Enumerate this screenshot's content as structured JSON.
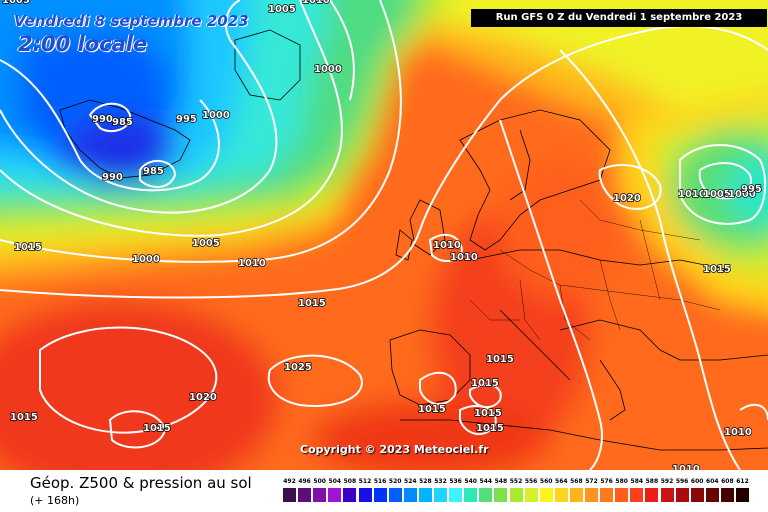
{
  "header": {
    "date_title": "Vendredi 8 septembre 2023",
    "time_title": "2:00 locale",
    "run_banner": "Run GFS 0 Z du Vendredi 1 septembre 2023"
  },
  "map": {
    "copyright": "Copyright © 2023 Meteociel.fr",
    "isobar_labels": [
      "1005",
      "1010",
      "1000",
      "990",
      "985",
      "995",
      "1000",
      "990",
      "985",
      "1015",
      "1005",
      "1000",
      "1010",
      "1015",
      "1010",
      "1010",
      "1025",
      "1020",
      "1015",
      "1015",
      "1015",
      "1015",
      "1015",
      "1015",
      "1015",
      "1020",
      "1010",
      "1005",
      "1000",
      "995",
      "1015",
      "1010",
      "1010",
      "1005"
    ]
  },
  "footer": {
    "product_title": "Géop. Z500 & pression au sol",
    "forecast_hour": "(+ 168h)"
  },
  "legend": {
    "values": [
      "492",
      "496",
      "500",
      "504",
      "508",
      "512",
      "516",
      "520",
      "524",
      "528",
      "532",
      "536",
      "540",
      "544",
      "548",
      "552",
      "556",
      "560",
      "564",
      "568",
      "572",
      "576",
      "580",
      "584",
      "588",
      "592",
      "596",
      "600",
      "604",
      "608",
      "612"
    ],
    "colors": [
      "#3d0f4f",
      "#5a0f7a",
      "#7f10a8",
      "#a313d6",
      "#3b00c8",
      "#1a0fe8",
      "#0033ff",
      "#0060ff",
      "#008cff",
      "#00b4ff",
      "#1fd5ff",
      "#3ff0ff",
      "#31e6b8",
      "#52e07a",
      "#7ee04a",
      "#a8ea32",
      "#d6f02a",
      "#fff41c",
      "#ffd51c",
      "#ffb41b",
      "#ff9220",
      "#ff7a1c",
      "#ff5e1a",
      "#ff3e1a",
      "#e82018",
      "#cc1212",
      "#a80c0c",
      "#880808",
      "#680404",
      "#460202",
      "#200000"
    ]
  }
}
